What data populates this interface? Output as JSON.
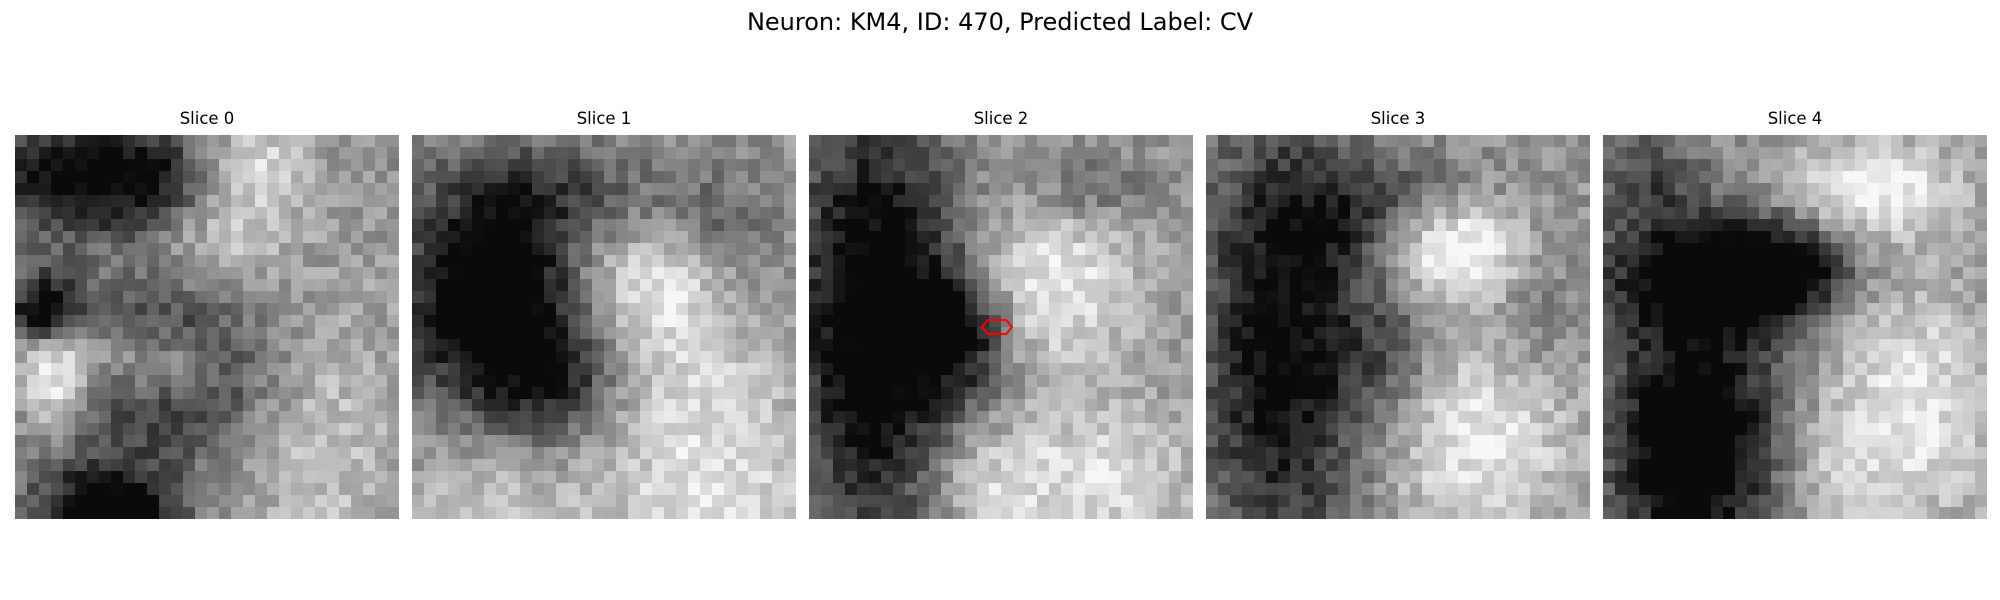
{
  "figure": {
    "title": "Neuron: KM4, ID: 470, Predicted Label: CV"
  },
  "colormap": "gray",
  "marker": {
    "slice": "Slice 2",
    "color": "#ff0000",
    "shape": "hexagon"
  },
  "panels": [
    {
      "title": "Slice 0",
      "blobs": [
        {
          "cx": 4,
          "cy": 3,
          "rx": 7,
          "ry": 5,
          "v": -0.55
        },
        {
          "cx": 11,
          "cy": 3,
          "rx": 5,
          "ry": 4,
          "v": -0.35
        },
        {
          "cx": 20,
          "cy": 2,
          "rx": 4,
          "ry": 4,
          "v": 0.25
        },
        {
          "cx": 2,
          "cy": 14,
          "rx": 3,
          "ry": 3,
          "v": -0.6
        },
        {
          "cx": 3,
          "cy": 20,
          "rx": 3,
          "ry": 4,
          "v": 0.4
        },
        {
          "cx": 7,
          "cy": 18,
          "rx": 8,
          "ry": 3,
          "v": 0.25
        },
        {
          "cx": 12,
          "cy": 19,
          "rx": 9,
          "ry": 7,
          "v": -0.5
        },
        {
          "cx": 12,
          "cy": 19,
          "rx": 4,
          "ry": 3,
          "v": 0.3
        },
        {
          "cx": 7,
          "cy": 32,
          "rx": 6,
          "ry": 5,
          "v": -0.8
        },
        {
          "cx": 25,
          "cy": 25,
          "rx": 7,
          "ry": 12,
          "v": 0.2
        },
        {
          "cx": 17,
          "cy": 8,
          "rx": 5,
          "ry": 4,
          "v": 0.2
        }
      ]
    },
    {
      "title": "Slice 1",
      "blobs": [
        {
          "cx": 6,
          "cy": 13,
          "rx": 7,
          "ry": 9,
          "v": -0.8
        },
        {
          "cx": 12,
          "cy": 20,
          "rx": 5,
          "ry": 5,
          "v": -0.35
        },
        {
          "cx": 12,
          "cy": 4,
          "rx": 8,
          "ry": 4,
          "v": -0.25
        },
        {
          "cx": 20,
          "cy": 12,
          "rx": 6,
          "ry": 5,
          "v": 0.35
        },
        {
          "cx": 25,
          "cy": 7,
          "rx": 5,
          "ry": 5,
          "v": -0.2
        },
        {
          "cx": 24,
          "cy": 29,
          "rx": 10,
          "ry": 7,
          "v": 0.3
        },
        {
          "cx": 5,
          "cy": 30,
          "rx": 7,
          "ry": 5,
          "v": 0.2
        },
        {
          "cx": 23,
          "cy": 20,
          "rx": 8,
          "ry": 5,
          "v": 0.2
        }
      ]
    },
    {
      "title": "Slice 2",
      "blobs": [
        {
          "cx": 5,
          "cy": 15,
          "rx": 7,
          "ry": 18,
          "v": -0.7
        },
        {
          "cx": 12,
          "cy": 16,
          "rx": 4,
          "ry": 5,
          "v": -0.5
        },
        {
          "cx": 20,
          "cy": 12,
          "rx": 7,
          "ry": 7,
          "v": 0.35
        },
        {
          "cx": 24,
          "cy": 28,
          "rx": 8,
          "ry": 6,
          "v": 0.3
        },
        {
          "cx": 14,
          "cy": 29,
          "rx": 5,
          "ry": 5,
          "v": 0.25
        },
        {
          "cx": 23,
          "cy": 4,
          "rx": 5,
          "ry": 3,
          "v": -0.2
        }
      ]
    },
    {
      "title": "Slice 3",
      "blobs": [
        {
          "cx": 6,
          "cy": 17,
          "rx": 7,
          "ry": 18,
          "v": -0.6
        },
        {
          "cx": 14,
          "cy": 6,
          "rx": 8,
          "ry": 5,
          "v": -0.3
        },
        {
          "cx": 20,
          "cy": 9,
          "rx": 6,
          "ry": 4,
          "v": 0.55
        },
        {
          "cx": 22,
          "cy": 25,
          "rx": 8,
          "ry": 8,
          "v": 0.35
        },
        {
          "cx": 15,
          "cy": 18,
          "rx": 4,
          "ry": 6,
          "v": -0.2
        },
        {
          "cx": 27,
          "cy": 14,
          "rx": 3,
          "ry": 6,
          "v": -0.15
        }
      ]
    },
    {
      "title": "Slice 4",
      "blobs": [
        {
          "cx": 8,
          "cy": 11,
          "rx": 9,
          "ry": 5,
          "v": -0.6
        },
        {
          "cx": 15,
          "cy": 11,
          "rx": 5,
          "ry": 4,
          "v": -0.45
        },
        {
          "cx": 7,
          "cy": 25,
          "rx": 7,
          "ry": 11,
          "v": -0.75
        },
        {
          "cx": 3,
          "cy": 3,
          "rx": 5,
          "ry": 4,
          "v": -0.3
        },
        {
          "cx": 22,
          "cy": 4,
          "rx": 7,
          "ry": 4,
          "v": 0.4
        },
        {
          "cx": 25,
          "cy": 22,
          "rx": 7,
          "ry": 10,
          "v": 0.35
        },
        {
          "cx": 18,
          "cy": 29,
          "rx": 4,
          "ry": 6,
          "v": 0.15
        }
      ]
    }
  ]
}
